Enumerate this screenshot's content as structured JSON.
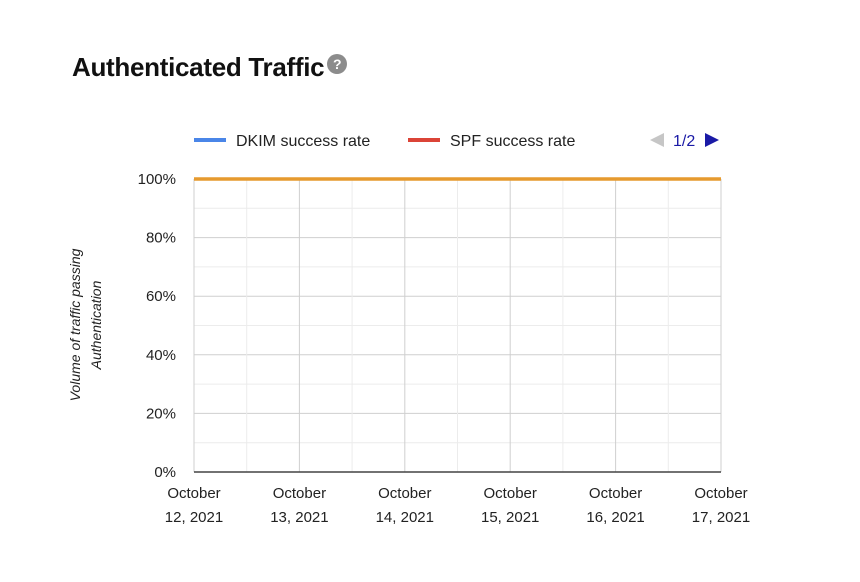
{
  "header": {
    "title": "Authenticated Traffic",
    "help_icon": "question-mark-icon",
    "help_glyph": "?"
  },
  "legend": {
    "page_indicator": "1/2",
    "prev_icon": "triangle-left-icon",
    "next_icon": "triangle-right-icon"
  },
  "chart_data": {
    "type": "line",
    "title": "Authenticated Traffic",
    "xlabel": "",
    "ylabel": "Volume of traffic passing Authentication",
    "ylabel_lines": [
      "Volume of traffic passing",
      "Authentication"
    ],
    "categories": [
      [
        "October",
        "12, 2021"
      ],
      [
        "October",
        "13, 2021"
      ],
      [
        "October",
        "14, 2021"
      ],
      [
        "October",
        "15, 2021"
      ],
      [
        "October",
        "16, 2021"
      ],
      [
        "October",
        "17, 2021"
      ]
    ],
    "yticks": [
      "100%",
      "80%",
      "60%",
      "40%",
      "20%",
      "0%"
    ],
    "ylim": [
      0,
      100
    ],
    "grid": true,
    "legend_position": "top",
    "series": [
      {
        "name": "DKIM success rate",
        "color": "#4a86e8",
        "values": [
          100,
          100,
          100,
          100,
          100,
          100
        ]
      },
      {
        "name": "SPF success rate",
        "color": "#db4437",
        "values": [
          100,
          100,
          100,
          100,
          100,
          100
        ]
      }
    ],
    "overlap_line_color": "#e69a2e"
  }
}
